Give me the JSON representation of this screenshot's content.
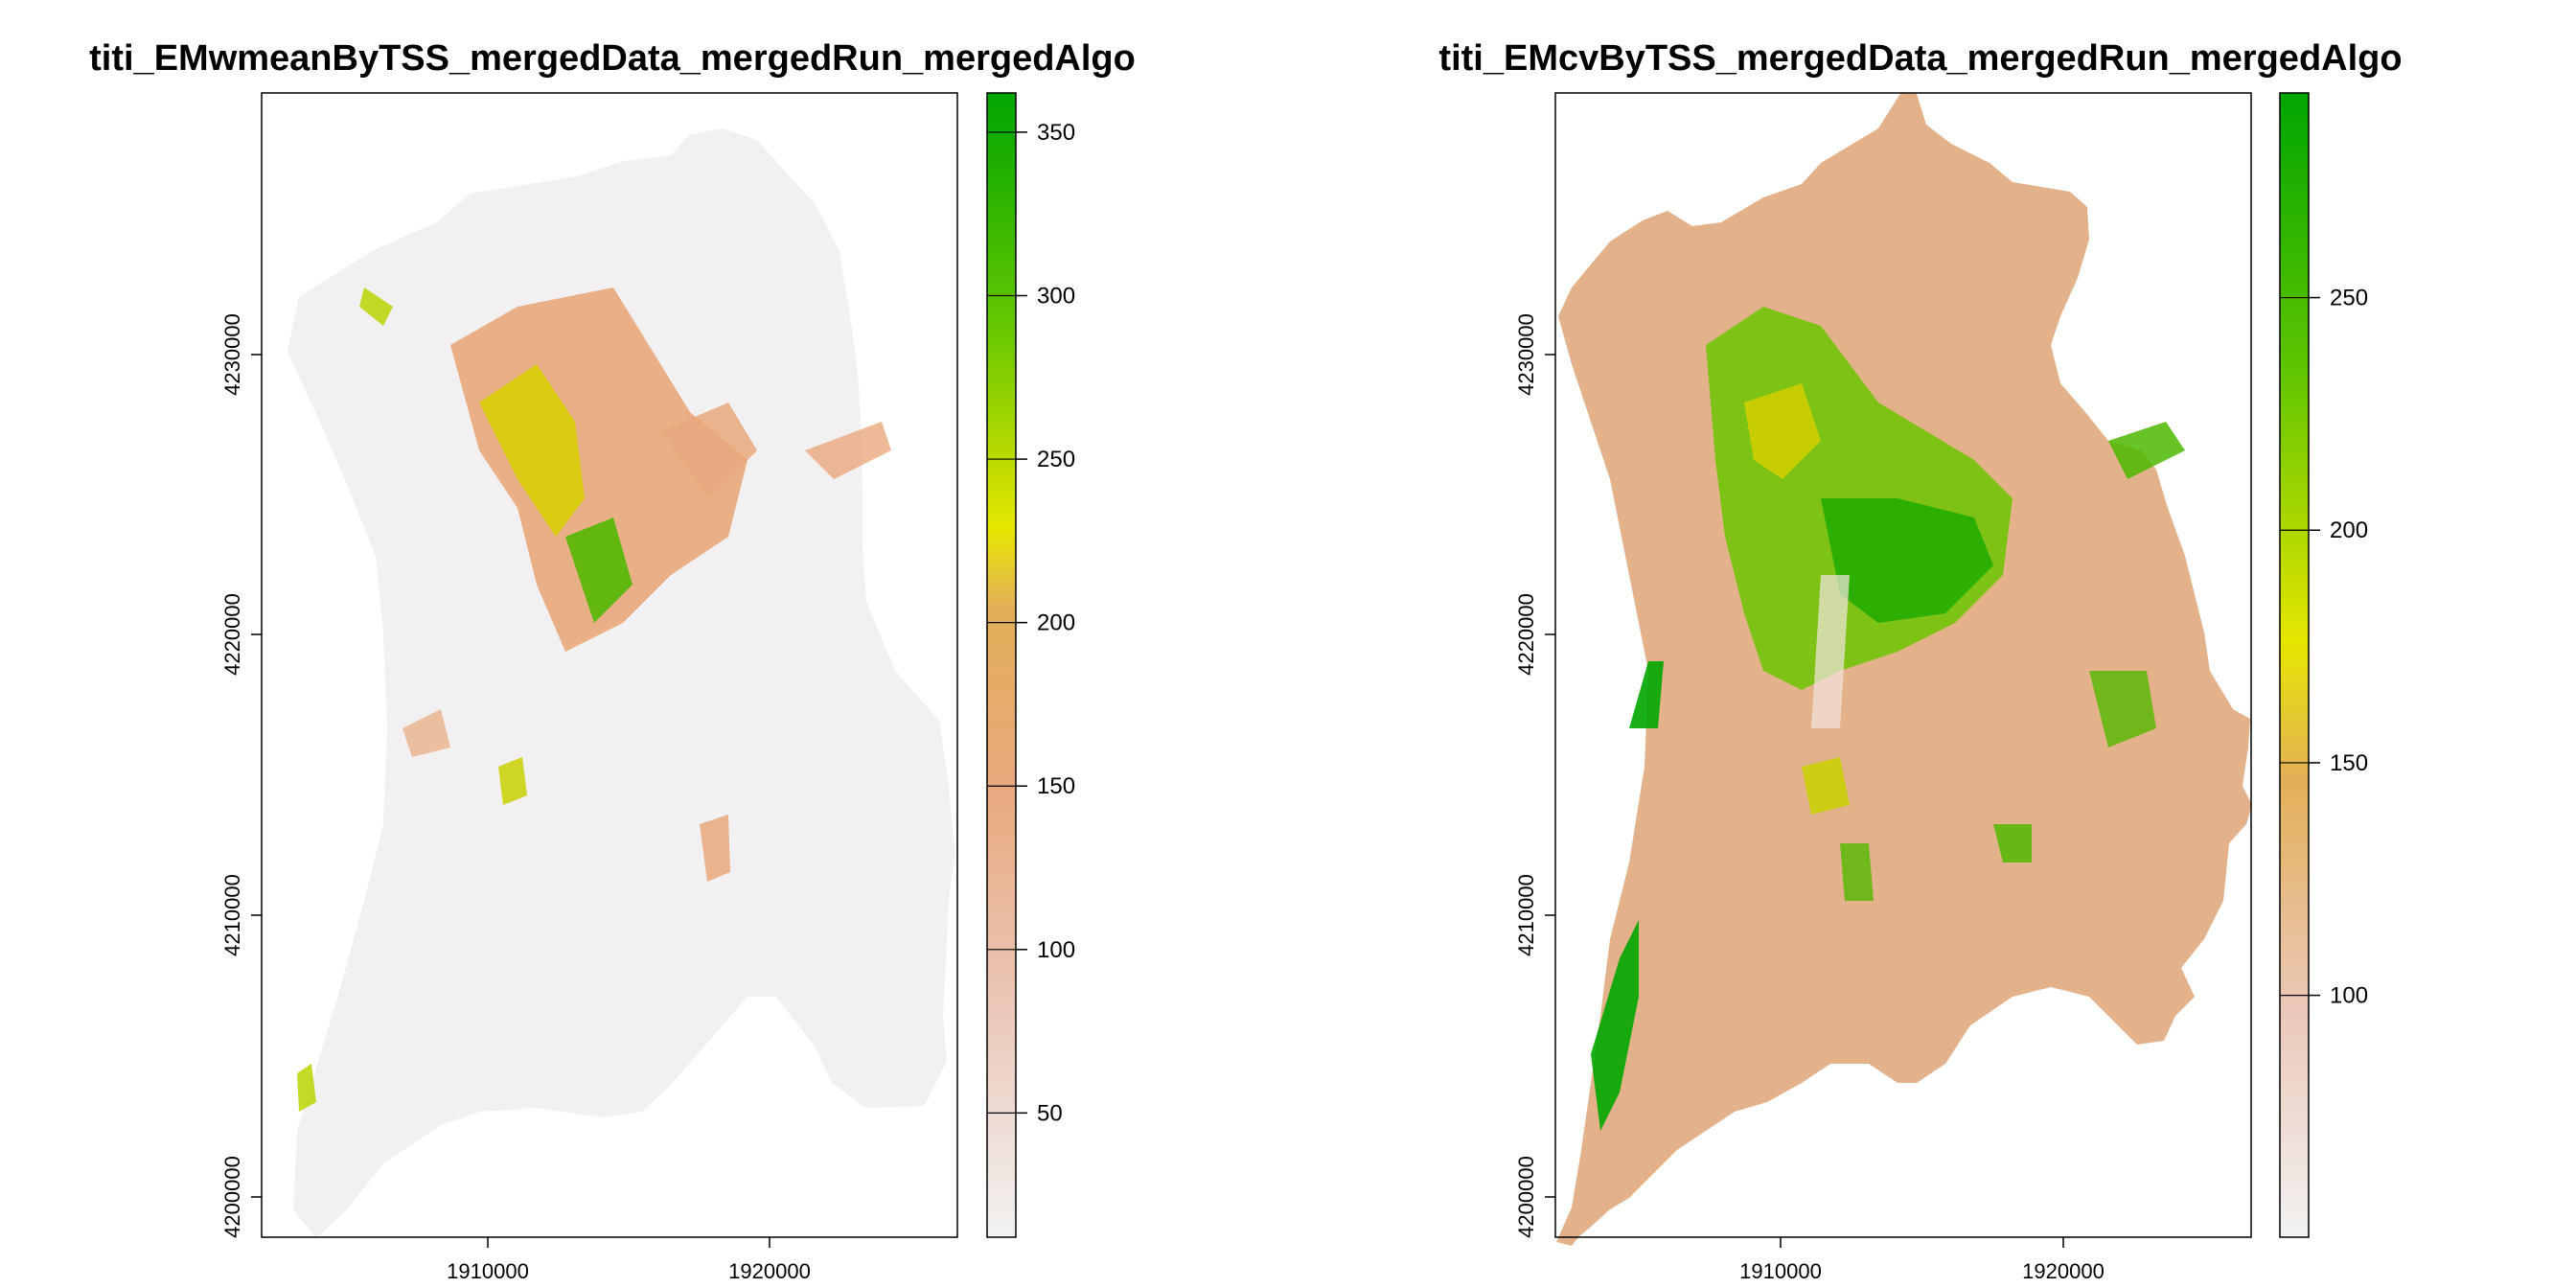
{
  "panels": [
    {
      "id": "left",
      "title": "titi_EMwmeanByTSS_mergedData_mergedRun_mergedAlgo",
      "x_ticks": [
        "1910000",
        "1920000"
      ],
      "y_ticks": [
        "4200000",
        "4210000",
        "4220000",
        "4230000"
      ],
      "legend": {
        "min": 12,
        "max": 362,
        "ticks": [
          "50",
          "100",
          "150",
          "200",
          "250",
          "300",
          "350"
        ],
        "tick_values": [
          50,
          100,
          150,
          200,
          250,
          300,
          350
        ]
      },
      "background_color": "#f2f0f0"
    },
    {
      "id": "right",
      "title": "titi_EMcvByTSS_mergedData_mergedRun_mergedAlgo",
      "x_ticks": [
        "1910000",
        "1920000"
      ],
      "y_ticks": [
        "4200000",
        "4210000",
        "4220000",
        "4230000"
      ],
      "legend": {
        "min": 48,
        "max": 294,
        "ticks": [
          "100",
          "150",
          "200",
          "250"
        ],
        "tick_values": [
          100,
          150,
          200,
          250
        ]
      },
      "background_color": "#e4b28a"
    }
  ],
  "x_tick_values": [
    1910000,
    1920000
  ],
  "y_tick_values": [
    4200000,
    4210000,
    4220000,
    4230000
  ],
  "colors": {
    "terrain_low": "#f2f2f2",
    "terrain_mid": "#e8a87c",
    "terrain_orange": "#e3b058",
    "terrain_yellow": "#e6e600",
    "terrain_green": "#00a600"
  }
}
